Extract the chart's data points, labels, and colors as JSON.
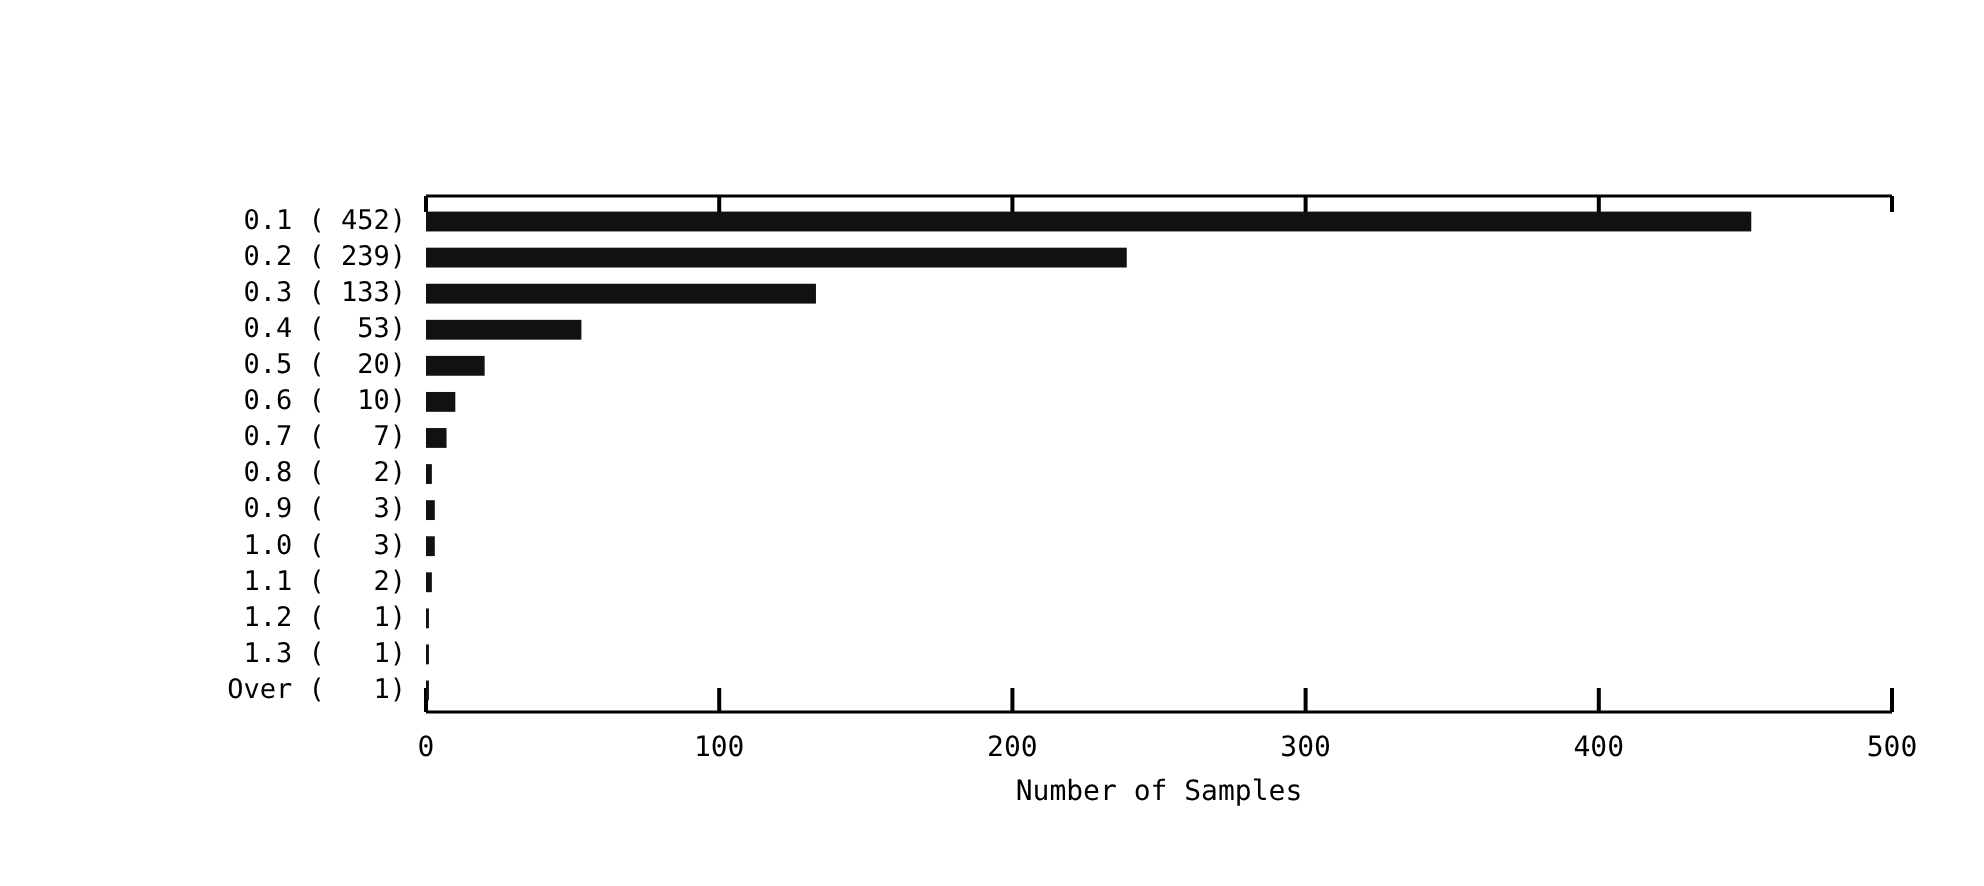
{
  "chart_data": {
    "type": "bar",
    "orientation": "horizontal",
    "xlabel": "Number of Samples",
    "categories": [
      "0.1 ( 452)",
      "0.2 ( 239)",
      "0.3 ( 133)",
      "0.4 (  53)",
      "0.5 (  20)",
      "0.6 (  10)",
      "0.7 (   7)",
      "0.8 (   2)",
      "0.9 (   3)",
      "1.0 (   3)",
      "1.1 (   2)",
      "1.2 (   1)",
      "1.3 (   1)",
      "Over (   1)"
    ],
    "values": [
      452,
      239,
      133,
      53,
      20,
      10,
      7,
      2,
      3,
      3,
      2,
      1,
      1,
      1
    ],
    "color": "#111111",
    "xlim": [
      0,
      500
    ],
    "xticks": [
      0,
      100,
      200,
      300,
      400,
      500
    ],
    "grid": false
  }
}
